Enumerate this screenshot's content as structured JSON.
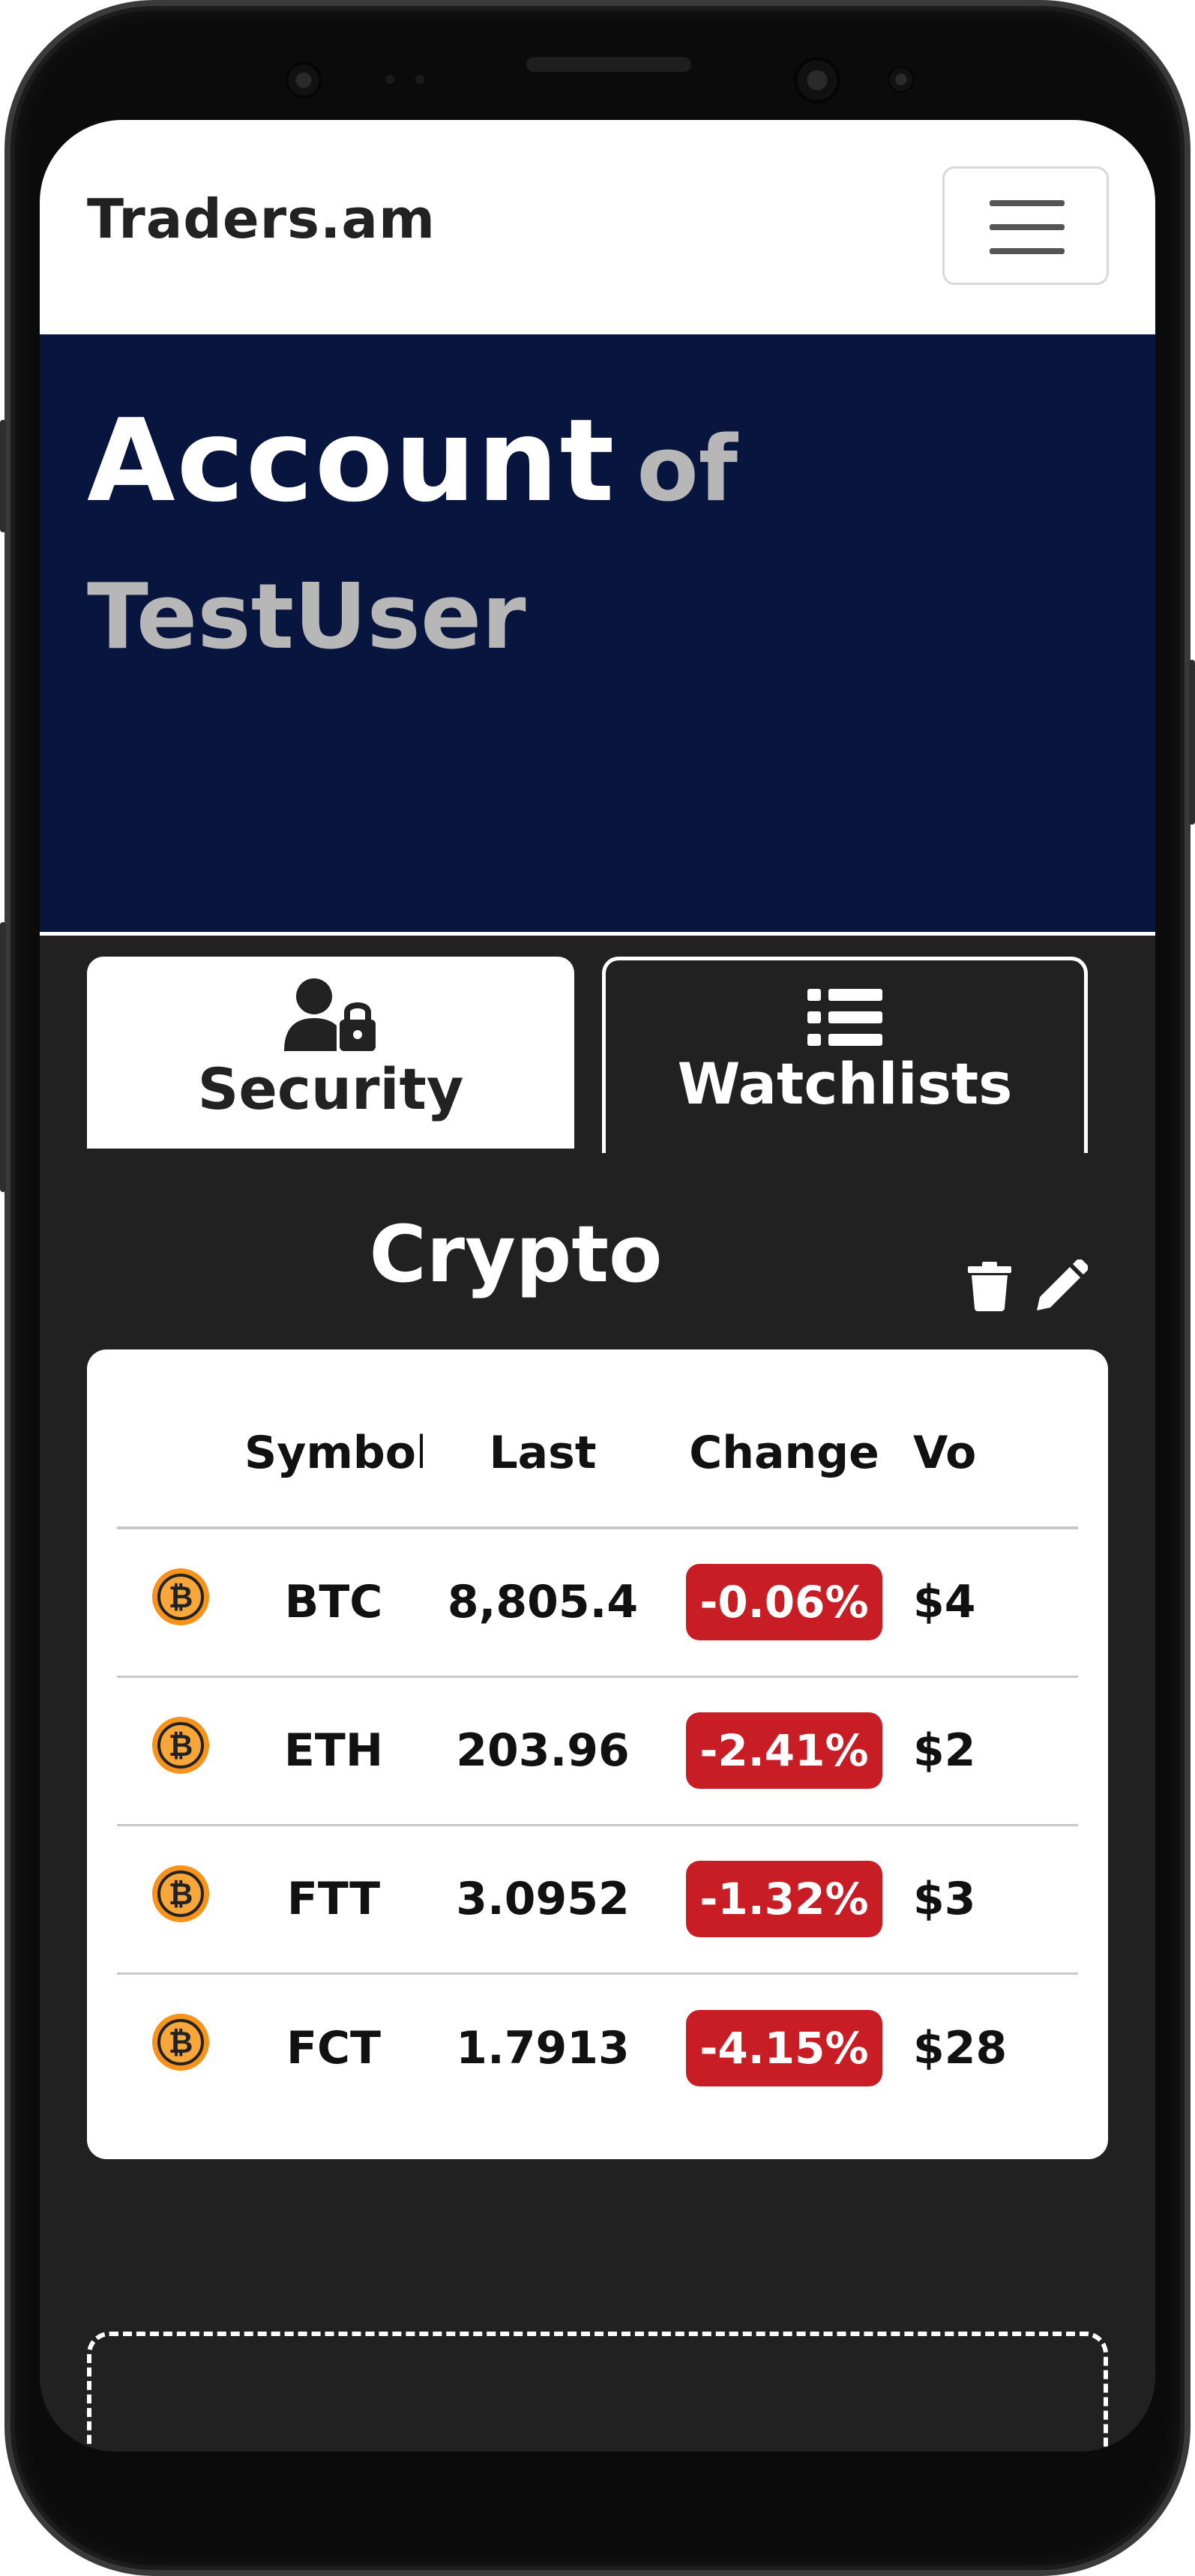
{
  "navbar": {
    "brand": "Traders.am"
  },
  "hero": {
    "title_main": "Account",
    "title_of": "of",
    "title_user": "TestUser"
  },
  "tabs": [
    {
      "label": "Security",
      "icon": "user-lock-icon",
      "active": false
    },
    {
      "label": "Watchlists",
      "icon": "list-icon",
      "active": true
    }
  ],
  "watchlist": {
    "name": "Crypto",
    "columns": [
      "",
      "Symbol",
      "Last",
      "Change",
      "Vo"
    ],
    "rows": [
      {
        "icon": "bitcoin-icon",
        "symbol": "BTC",
        "last": "8,805.4",
        "change": "-0.06%",
        "volume": "$4"
      },
      {
        "icon": "bitcoin-icon",
        "symbol": "ETH",
        "last": "203.96",
        "change": "-2.41%",
        "volume": "$2"
      },
      {
        "icon": "bitcoin-icon",
        "symbol": "FTT",
        "last": "3.0952",
        "change": "-1.32%",
        "volume": "$3"
      },
      {
        "icon": "bitcoin-icon",
        "symbol": "FCT",
        "last": "1.7913",
        "change": "-4.15%",
        "volume": "$28"
      }
    ]
  },
  "colors": {
    "hero_bg": "#07153f",
    "content_bg": "#212121",
    "negative_badge": "#c81d25",
    "bitcoin_orange": "#f7931a"
  }
}
